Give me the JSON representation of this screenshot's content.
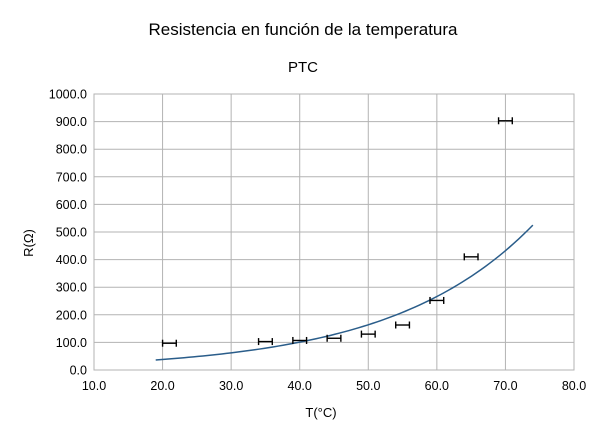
{
  "chart_data": {
    "type": "scatter",
    "title": "Resistencia en función de la temperatura",
    "subtitle": "PTC",
    "xlabel": "T(°C)",
    "ylabel": "R(Ω)",
    "xlim": [
      10,
      80
    ],
    "ylim": [
      0,
      1000
    ],
    "x_ticks": [
      "10.0",
      "20.0",
      "30.0",
      "40.0",
      "50.0",
      "60.0",
      "70.0",
      "80.0"
    ],
    "y_ticks": [
      "0.0",
      "100.0",
      "200.0",
      "300.0",
      "400.0",
      "500.0",
      "600.0",
      "700.0",
      "800.0",
      "900.0",
      "1000.0"
    ],
    "grid": true,
    "legend": "none",
    "series": [
      {
        "kind": "points_with_x_error",
        "x": [
          21,
          35,
          40,
          45,
          50,
          55,
          60,
          65,
          70
        ],
        "y": [
          97,
          103,
          107,
          115,
          130,
          163,
          252,
          410,
          903
        ],
        "x_error": 1,
        "color": "#000000"
      },
      {
        "kind": "exponential_trendline",
        "a": 14.5,
        "b": 0.0485,
        "x_range": [
          19,
          74
        ],
        "color": "#2a5d8a"
      }
    ]
  }
}
